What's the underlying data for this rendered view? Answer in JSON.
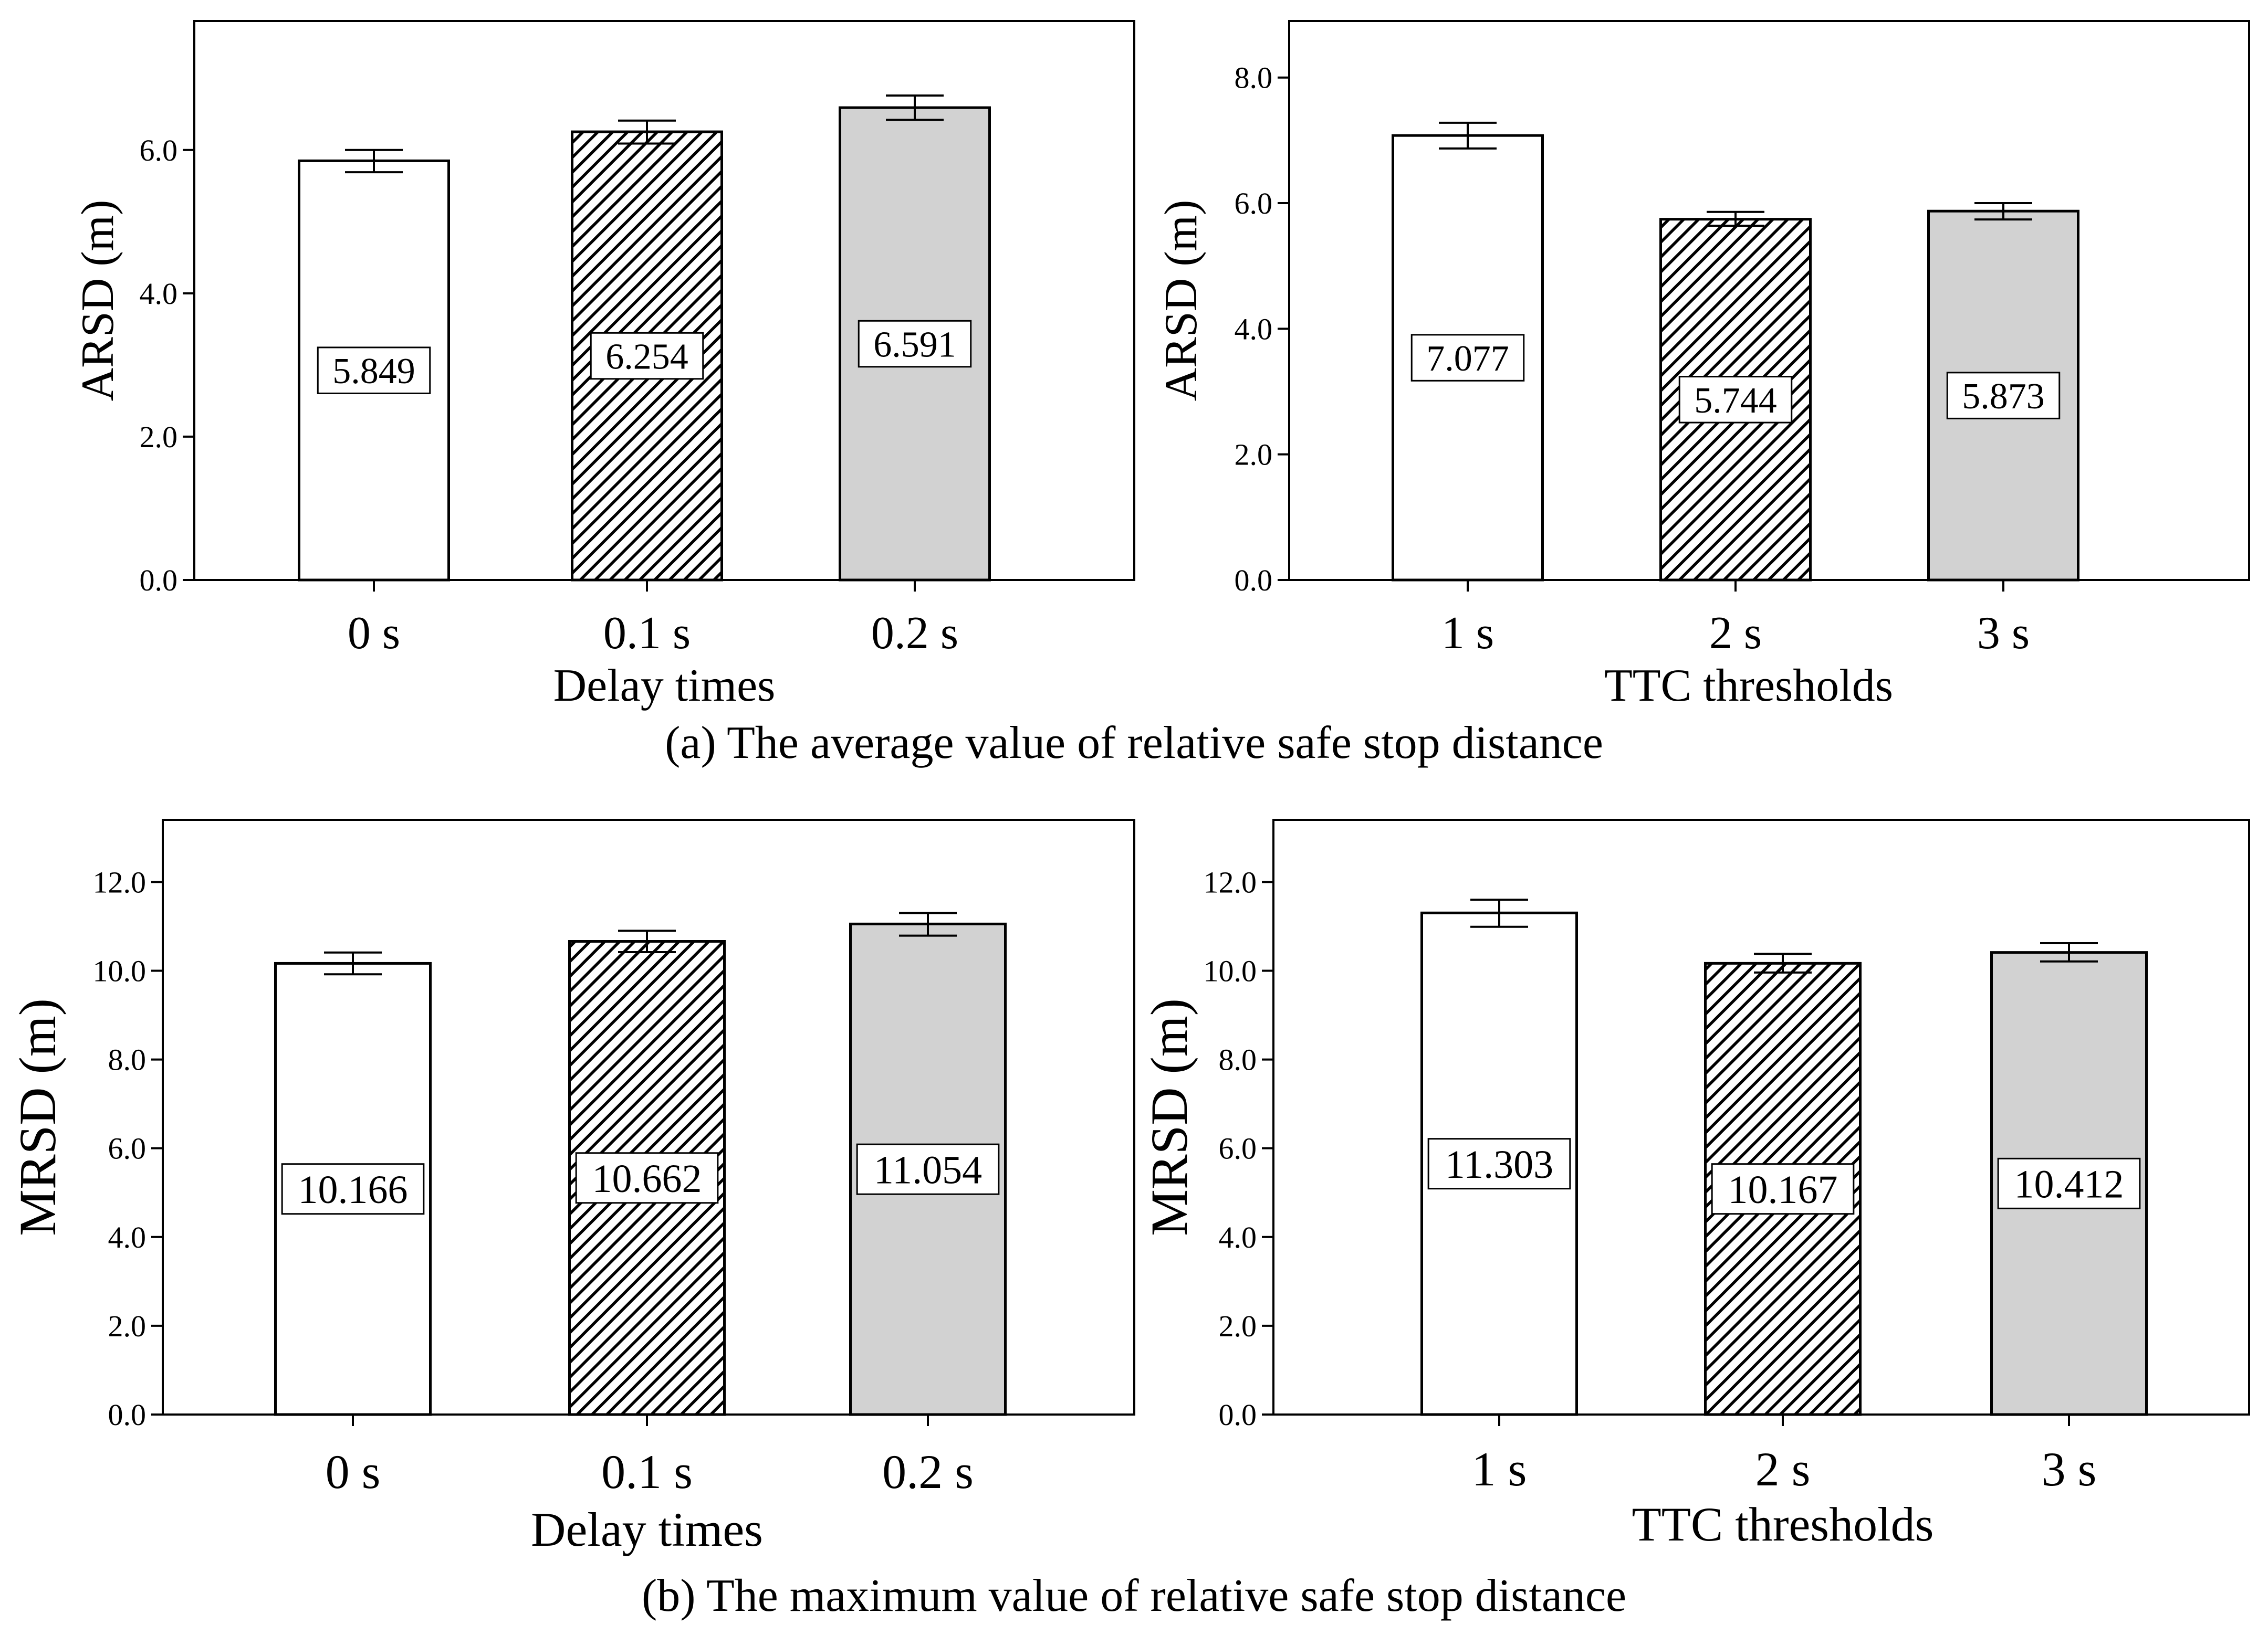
{
  "captions": {
    "a": "(a) The average value of relative safe stop distance",
    "b": "(b) The maximum value of relative safe stop distance"
  },
  "colors": {
    "bar_fill_white": "#ffffff",
    "bar_fill_gray": "#d2d2d2",
    "hatch": "#000000",
    "axis": "#000000"
  },
  "chart_data": [
    {
      "id": "a-left",
      "type": "bar",
      "title": "",
      "xlabel": "Delay times",
      "ylabel": "ARSD (m)",
      "categories": [
        "0 s",
        "0.1 s",
        "0.2 s"
      ],
      "values": [
        5.849,
        6.254,
        6.591
      ],
      "value_labels": [
        "5.849",
        "6.254",
        "6.591"
      ],
      "error_low": [
        5.69,
        6.09,
        6.42
      ],
      "error_high": [
        6.0,
        6.41,
        6.76
      ],
      "fills": [
        "white",
        "hatch",
        "gray"
      ],
      "ylim": [
        0,
        7.8
      ],
      "yticks": [
        0,
        2,
        4,
        6
      ],
      "ytick_labels": [
        "0.0",
        "2.0",
        "4.0",
        "6.0"
      ]
    },
    {
      "id": "a-right",
      "type": "bar",
      "title": "",
      "xlabel": "TTC thresholds",
      "ylabel": "ARSD (m)",
      "categories": [
        "1 s",
        "2 s",
        "3 s"
      ],
      "values": [
        7.077,
        5.744,
        5.873
      ],
      "value_labels": [
        "7.077",
        "5.744",
        "5.873"
      ],
      "error_low": [
        6.87,
        5.64,
        5.74
      ],
      "error_high": [
        7.28,
        5.86,
        6.0
      ],
      "fills": [
        "white",
        "hatch",
        "gray"
      ],
      "ylim": [
        0,
        8.9
      ],
      "yticks": [
        0,
        2,
        4,
        6,
        8
      ],
      "ytick_labels": [
        "0.0",
        "2.0",
        "4.0",
        "6.0",
        "8.0"
      ]
    },
    {
      "id": "b-left",
      "type": "bar",
      "title": "",
      "xlabel": "Delay times",
      "ylabel": "MRSD (m)",
      "categories": [
        "0 s",
        "0.1 s",
        "0.2 s"
      ],
      "values": [
        10.166,
        10.662,
        11.054
      ],
      "value_labels": [
        "10.166",
        "10.662",
        "11.054"
      ],
      "error_low": [
        9.92,
        10.42,
        10.79
      ],
      "error_high": [
        10.41,
        10.9,
        11.3
      ],
      "fills": [
        "white",
        "hatch",
        "gray"
      ],
      "ylim": [
        0,
        13.4
      ],
      "yticks": [
        0,
        2,
        4,
        6,
        8,
        10,
        12
      ],
      "ytick_labels": [
        "0.0",
        "2.0",
        "4.0",
        "6.0",
        "8.0",
        "10.0",
        "12.0"
      ]
    },
    {
      "id": "b-right",
      "type": "bar",
      "title": "",
      "xlabel": "TTC thresholds",
      "ylabel": "MRSD (m)",
      "categories": [
        "1 s",
        "2 s",
        "3 s"
      ],
      "values": [
        11.303,
        10.167,
        10.412
      ],
      "value_labels": [
        "11.303",
        "10.167",
        "10.412"
      ],
      "error_low": [
        10.99,
        9.96,
        10.21
      ],
      "error_high": [
        11.6,
        10.38,
        10.62
      ],
      "fills": [
        "white",
        "hatch",
        "gray"
      ],
      "ylim": [
        0,
        13.4
      ],
      "yticks": [
        0,
        2,
        4,
        6,
        8,
        10,
        12
      ],
      "ytick_labels": [
        "0.0",
        "2.0",
        "4.0",
        "6.0",
        "8.0",
        "10.0",
        "12.0"
      ]
    }
  ]
}
